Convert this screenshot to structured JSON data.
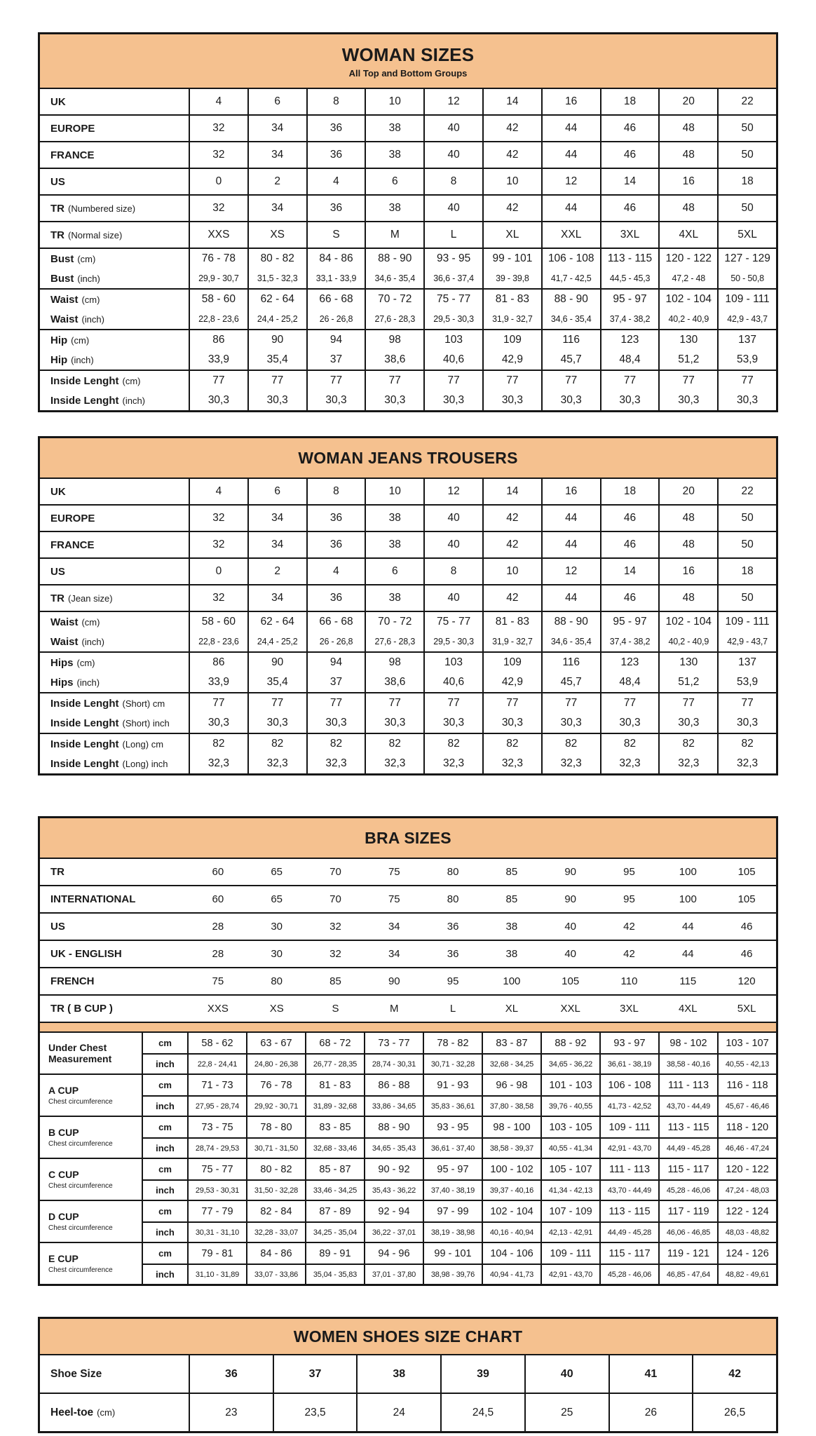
{
  "page": {
    "background": "#FFFFFF",
    "accent_color": "#F5C18F",
    "border_color": "#161616",
    "footer_bar_color": "#1E2734"
  },
  "tables": [
    {
      "id": "woman-sizes",
      "title": "WOMAN SIZES",
      "subtitle": "All Top and Bottom Groups",
      "groups": [
        {
          "rows": [
            {
              "name": "UK",
              "suffix": "",
              "values": [
                "4",
                "6",
                "8",
                "10",
                "12",
                "14",
                "16",
                "18",
                "20",
                "22"
              ]
            }
          ]
        },
        {
          "rows": [
            {
              "name": "EUROPE",
              "suffix": "",
              "values": [
                "32",
                "34",
                "36",
                "38",
                "40",
                "42",
                "44",
                "46",
                "48",
                "50"
              ]
            }
          ]
        },
        {
          "rows": [
            {
              "name": "FRANCE",
              "suffix": "",
              "values": [
                "32",
                "34",
                "36",
                "38",
                "40",
                "42",
                "44",
                "46",
                "48",
                "50"
              ]
            }
          ]
        },
        {
          "rows": [
            {
              "name": "US",
              "suffix": "",
              "values": [
                "0",
                "2",
                "4",
                "6",
                "8",
                "10",
                "12",
                "14",
                "16",
                "18"
              ]
            }
          ]
        },
        {
          "rows": [
            {
              "name": "TR",
              "suffix": "(Numbered size)",
              "values": [
                "32",
                "34",
                "36",
                "38",
                "40",
                "42",
                "44",
                "46",
                "48",
                "50"
              ]
            }
          ]
        },
        {
          "rows": [
            {
              "name": "TR",
              "suffix": "(Normal size)",
              "values": [
                "XXS",
                "XS",
                "S",
                "M",
                "L",
                "XL",
                "XXL",
                "3XL",
                "4XL",
                "5XL"
              ]
            }
          ]
        },
        {
          "rows": [
            {
              "name": "Bust",
              "suffix": "(cm)",
              "values": [
                "76 - 78",
                "80 - 82",
                "84 - 86",
                "88 - 90",
                "93 - 95",
                "99 - 101",
                "106 - 108",
                "113 - 115",
                "120 - 122",
                "127 - 129"
              ]
            },
            {
              "name": "Bust",
              "suffix": "(inch)",
              "small": true,
              "values": [
                "29,9 - 30,7",
                "31,5 - 32,3",
                "33,1 - 33,9",
                "34,6 - 35,4",
                "36,6 - 37,4",
                "39 - 39,8",
                "41,7 - 42,5",
                "44,5 - 45,3",
                "47,2 - 48",
                "50 - 50,8"
              ]
            }
          ]
        },
        {
          "rows": [
            {
              "name": "Waist",
              "suffix": "(cm)",
              "values": [
                "58 - 60",
                "62 - 64",
                "66 - 68",
                "70 - 72",
                "75 - 77",
                "81 - 83",
                "88 - 90",
                "95 - 97",
                "102 - 104",
                "109 - 111"
              ]
            },
            {
              "name": "Waist",
              "suffix": "(inch)",
              "small": true,
              "values": [
                "22,8 - 23,6",
                "24,4 - 25,2",
                "26 - 26,8",
                "27,6 - 28,3",
                "29,5 - 30,3",
                "31,9 - 32,7",
                "34,6 - 35,4",
                "37,4 - 38,2",
                "40,2 - 40,9",
                "42,9 - 43,7"
              ]
            }
          ]
        },
        {
          "rows": [
            {
              "name": "Hip",
              "suffix": "(cm)",
              "values": [
                "86",
                "90",
                "94",
                "98",
                "103",
                "109",
                "116",
                "123",
                "130",
                "137"
              ]
            },
            {
              "name": "Hip",
              "suffix": "(inch)",
              "values": [
                "33,9",
                "35,4",
                "37",
                "38,6",
                "40,6",
                "42,9",
                "45,7",
                "48,4",
                "51,2",
                "53,9"
              ]
            }
          ]
        },
        {
          "rows": [
            {
              "name": "Inside Lenght",
              "suffix": "(cm)",
              "values": [
                "77",
                "77",
                "77",
                "77",
                "77",
                "77",
                "77",
                "77",
                "77",
                "77"
              ]
            },
            {
              "name": "Inside Lenght",
              "suffix": "(inch)",
              "values": [
                "30,3",
                "30,3",
                "30,3",
                "30,3",
                "30,3",
                "30,3",
                "30,3",
                "30,3",
                "30,3",
                "30,3"
              ]
            }
          ]
        }
      ]
    },
    {
      "id": "woman-jeans",
      "title": "WOMAN JEANS TROUSERS",
      "groups": [
        {
          "rows": [
            {
              "name": "UK",
              "suffix": "",
              "values": [
                "4",
                "6",
                "8",
                "10",
                "12",
                "14",
                "16",
                "18",
                "20",
                "22"
              ]
            }
          ]
        },
        {
          "rows": [
            {
              "name": "EUROPE",
              "suffix": "",
              "values": [
                "32",
                "34",
                "36",
                "38",
                "40",
                "42",
                "44",
                "46",
                "48",
                "50"
              ]
            }
          ]
        },
        {
          "rows": [
            {
              "name": "FRANCE",
              "suffix": "",
              "values": [
                "32",
                "34",
                "36",
                "38",
                "40",
                "42",
                "44",
                "46",
                "48",
                "50"
              ]
            }
          ]
        },
        {
          "rows": [
            {
              "name": "US",
              "suffix": "",
              "values": [
                "0",
                "2",
                "4",
                "6",
                "8",
                "10",
                "12",
                "14",
                "16",
                "18"
              ]
            }
          ]
        },
        {
          "rows": [
            {
              "name": "TR",
              "suffix": "(Jean size)",
              "values": [
                "32",
                "34",
                "36",
                "38",
                "40",
                "42",
                "44",
                "46",
                "48",
                "50"
              ]
            }
          ]
        },
        {
          "rows": [
            {
              "name": "Waist",
              "suffix": "(cm)",
              "values": [
                "58 - 60",
                "62 - 64",
                "66 - 68",
                "70 - 72",
                "75 - 77",
                "81 - 83",
                "88 - 90",
                "95 - 97",
                "102 - 104",
                "109 - 111"
              ]
            },
            {
              "name": "Waist",
              "suffix": "(inch)",
              "small": true,
              "values": [
                "22,8 - 23,6",
                "24,4 - 25,2",
                "26 - 26,8",
                "27,6 - 28,3",
                "29,5 - 30,3",
                "31,9 - 32,7",
                "34,6 - 35,4",
                "37,4 - 38,2",
                "40,2 - 40,9",
                "42,9 - 43,7"
              ]
            }
          ]
        },
        {
          "rows": [
            {
              "name": "Hips",
              "suffix": "(cm)",
              "values": [
                "86",
                "90",
                "94",
                "98",
                "103",
                "109",
                "116",
                "123",
                "130",
                "137"
              ]
            },
            {
              "name": "Hips",
              "suffix": "(inch)",
              "values": [
                "33,9",
                "35,4",
                "37",
                "38,6",
                "40,6",
                "42,9",
                "45,7",
                "48,4",
                "51,2",
                "53,9"
              ]
            }
          ]
        },
        {
          "rows": [
            {
              "name": "Inside Lenght",
              "suffix": "(Short) cm",
              "values": [
                "77",
                "77",
                "77",
                "77",
                "77",
                "77",
                "77",
                "77",
                "77",
                "77"
              ]
            },
            {
              "name": "Inside Lenght",
              "suffix": "(Short) inch",
              "values": [
                "30,3",
                "30,3",
                "30,3",
                "30,3",
                "30,3",
                "30,3",
                "30,3",
                "30,3",
                "30,3",
                "30,3"
              ]
            }
          ]
        },
        {
          "rows": [
            {
              "name": "Inside Lenght",
              "suffix": "(Long) cm",
              "values": [
                "82",
                "82",
                "82",
                "82",
                "82",
                "82",
                "82",
                "82",
                "82",
                "82"
              ]
            },
            {
              "name": "Inside Lenght",
              "suffix": "(Long) inch",
              "values": [
                "32,3",
                "32,3",
                "32,3",
                "32,3",
                "32,3",
                "32,3",
                "32,3",
                "32,3",
                "32,3",
                "32,3"
              ]
            }
          ]
        }
      ]
    },
    {
      "id": "bra-sizes",
      "title": "BRA SIZES",
      "conversion_rows": [
        {
          "label": "TR",
          "values": [
            "60",
            "65",
            "70",
            "75",
            "80",
            "85",
            "90",
            "95",
            "100",
            "105"
          ]
        },
        {
          "label": "INTERNATIONAL",
          "values": [
            "60",
            "65",
            "70",
            "75",
            "80",
            "85",
            "90",
            "95",
            "100",
            "105"
          ]
        },
        {
          "label": "US",
          "values": [
            "28",
            "30",
            "32",
            "34",
            "36",
            "38",
            "40",
            "42",
            "44",
            "46"
          ]
        },
        {
          "label": "UK - ENGLISH",
          "values": [
            "28",
            "30",
            "32",
            "34",
            "36",
            "38",
            "40",
            "42",
            "44",
            "46"
          ]
        },
        {
          "label": "FRENCH",
          "values": [
            "75",
            "80",
            "85",
            "90",
            "95",
            "100",
            "105",
            "110",
            "115",
            "120"
          ]
        },
        {
          "label": "TR ( B CUP )",
          "values": [
            "XXS",
            "XS",
            "S",
            "M",
            "L",
            "XL",
            "XXL",
            "3XL",
            "4XL",
            "5XL"
          ]
        }
      ],
      "cup_groups": [
        {
          "name": "Under Chest Measurement",
          "subtitle": "",
          "rows": [
            {
              "unit": "cm",
              "values": [
                "58 - 62",
                "63 - 67",
                "68 - 72",
                "73 - 77",
                "78 - 82",
                "83 - 87",
                "88 - 92",
                "93 - 97",
                "98 - 102",
                "103 - 107"
              ]
            },
            {
              "unit": "inch",
              "small": true,
              "values": [
                "22,8 - 24,41",
                "24,80 - 26,38",
                "26,77 - 28,35",
                "28,74 - 30,31",
                "30,71 - 32,28",
                "32,68 - 34,25",
                "34,65 - 36,22",
                "36,61 - 38,19",
                "38,58 - 40,16",
                "40,55 - 42,13"
              ]
            }
          ]
        },
        {
          "name": "A CUP",
          "subtitle": "Chest circumference",
          "rows": [
            {
              "unit": "cm",
              "values": [
                "71 - 73",
                "76 - 78",
                "81 - 83",
                "86 - 88",
                "91 - 93",
                "96 - 98",
                "101 - 103",
                "106 - 108",
                "111 - 113",
                "116 - 118"
              ]
            },
            {
              "unit": "inch",
              "small": true,
              "values": [
                "27,95 - 28,74",
                "29,92 - 30,71",
                "31,89 - 32,68",
                "33,86 - 34,65",
                "35,83 - 36,61",
                "37,80 - 38,58",
                "39,76 - 40,55",
                "41,73 - 42,52",
                "43,70 - 44,49",
                "45,67 - 46,46"
              ]
            }
          ]
        },
        {
          "name": "B CUP",
          "subtitle": "Chest circumference",
          "rows": [
            {
              "unit": "cm",
              "values": [
                "73 - 75",
                "78 - 80",
                "83 - 85",
                "88 - 90",
                "93 - 95",
                "98 - 100",
                "103 - 105",
                "109 - 111",
                "113 - 115",
                "118 - 120"
              ]
            },
            {
              "unit": "inch",
              "small": true,
              "values": [
                "28,74 - 29,53",
                "30,71 - 31,50",
                "32,68 - 33,46",
                "34,65 - 35,43",
                "36,61 - 37,40",
                "38,58 - 39,37",
                "40,55 - 41,34",
                "42,91 - 43,70",
                "44,49 - 45,28",
                "46,46 - 47,24"
              ]
            }
          ]
        },
        {
          "name": "C CUP",
          "subtitle": "Chest circumference",
          "rows": [
            {
              "unit": "cm",
              "values": [
                "75 - 77",
                "80 - 82",
                "85 - 87",
                "90 - 92",
                "95 - 97",
                "100 - 102",
                "105 - 107",
                "111 - 113",
                "115 - 117",
                "120 - 122"
              ]
            },
            {
              "unit": "inch",
              "small": true,
              "values": [
                "29,53 - 30,31",
                "31,50 - 32,28",
                "33,46 - 34,25",
                "35,43 - 36,22",
                "37,40 - 38,19",
                "39,37 - 40,16",
                "41,34 - 42,13",
                "43,70 - 44,49",
                "45,28 - 46,06",
                "47,24 - 48,03"
              ]
            }
          ]
        },
        {
          "name": "D CUP",
          "subtitle": "Chest circumference",
          "rows": [
            {
              "unit": "cm",
              "values": [
                "77 - 79",
                "82 - 84",
                "87 - 89",
                "92 - 94",
                "97 - 99",
                "102 - 104",
                "107 - 109",
                "113 - 115",
                "117 - 119",
                "122 - 124"
              ]
            },
            {
              "unit": "inch",
              "small": true,
              "values": [
                "30,31 - 31,10",
                "32,28 - 33,07",
                "34,25 - 35,04",
                "36,22 - 37,01",
                "38,19 - 38,98",
                "40,16 - 40,94",
                "42,13 - 42,91",
                "44,49 - 45,28",
                "46,06 - 46,85",
                "48,03 - 48,82"
              ]
            }
          ]
        },
        {
          "name": "E CUP",
          "subtitle": "Chest circumference",
          "rows": [
            {
              "unit": "cm",
              "values": [
                "79 - 81",
                "84 - 86",
                "89 - 91",
                "94 - 96",
                "99 - 101",
                "104 - 106",
                "109 - 111",
                "115 - 117",
                "119 - 121",
                "124 - 126"
              ]
            },
            {
              "unit": "inch",
              "small": true,
              "values": [
                "31,10 - 31,89",
                "33,07 - 33,86",
                "35,04 - 35,83",
                "37,01 - 37,80",
                "38,98 - 39,76",
                "40,94 - 41,73",
                "42,91 - 43,70",
                "45,28 - 46,06",
                "46,85 - 47,64",
                "48,82 - 49,61"
              ]
            }
          ]
        }
      ]
    },
    {
      "id": "women-shoes",
      "title": "WOMEN SHOES SIZE CHART",
      "rows": [
        {
          "name": "Shoe Size",
          "suffix": "",
          "bold": true,
          "values": [
            "36",
            "37",
            "38",
            "39",
            "40",
            "41",
            "42"
          ]
        },
        {
          "name": "Heel-toe",
          "suffix": "(cm)",
          "values": [
            "23",
            "23,5",
            "24",
            "24,5",
            "25",
            "26",
            "26,5"
          ]
        }
      ]
    }
  ]
}
